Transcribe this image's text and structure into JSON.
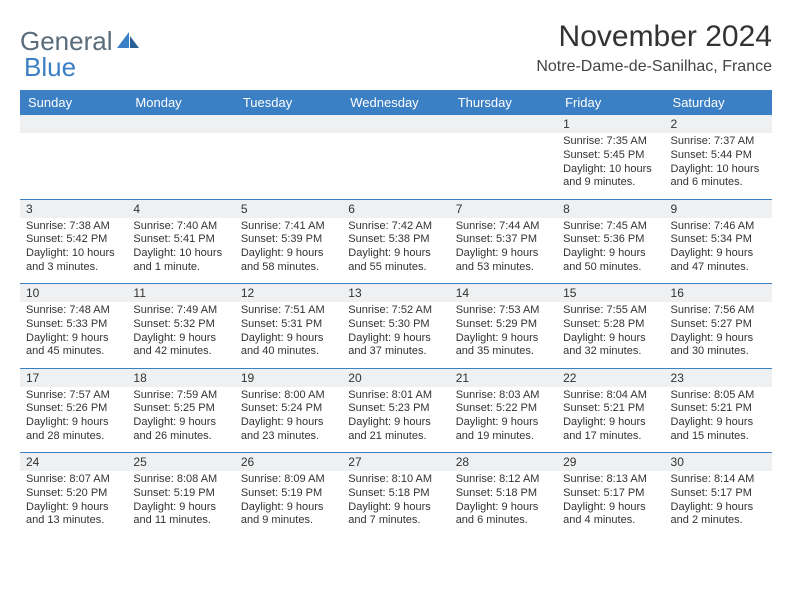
{
  "logo": {
    "text1": "General",
    "text2": "Blue"
  },
  "title": "November 2024",
  "location": "Notre-Dame-de-Sanilhac, France",
  "colors": {
    "header_bg": "#3b7fc4",
    "spacer_bg": "#eef0f2",
    "text": "#333333"
  },
  "weekdays": [
    "Sunday",
    "Monday",
    "Tuesday",
    "Wednesday",
    "Thursday",
    "Friday",
    "Saturday"
  ],
  "weeks": [
    [
      null,
      null,
      null,
      null,
      null,
      {
        "n": "1",
        "sr": "Sunrise: 7:35 AM",
        "ss": "Sunset: 5:45 PM",
        "dl": "Daylight: 10 hours and 9 minutes."
      },
      {
        "n": "2",
        "sr": "Sunrise: 7:37 AM",
        "ss": "Sunset: 5:44 PM",
        "dl": "Daylight: 10 hours and 6 minutes."
      }
    ],
    [
      {
        "n": "3",
        "sr": "Sunrise: 7:38 AM",
        "ss": "Sunset: 5:42 PM",
        "dl": "Daylight: 10 hours and 3 minutes."
      },
      {
        "n": "4",
        "sr": "Sunrise: 7:40 AM",
        "ss": "Sunset: 5:41 PM",
        "dl": "Daylight: 10 hours and 1 minute."
      },
      {
        "n": "5",
        "sr": "Sunrise: 7:41 AM",
        "ss": "Sunset: 5:39 PM",
        "dl": "Daylight: 9 hours and 58 minutes."
      },
      {
        "n": "6",
        "sr": "Sunrise: 7:42 AM",
        "ss": "Sunset: 5:38 PM",
        "dl": "Daylight: 9 hours and 55 minutes."
      },
      {
        "n": "7",
        "sr": "Sunrise: 7:44 AM",
        "ss": "Sunset: 5:37 PM",
        "dl": "Daylight: 9 hours and 53 minutes."
      },
      {
        "n": "8",
        "sr": "Sunrise: 7:45 AM",
        "ss": "Sunset: 5:36 PM",
        "dl": "Daylight: 9 hours and 50 minutes."
      },
      {
        "n": "9",
        "sr": "Sunrise: 7:46 AM",
        "ss": "Sunset: 5:34 PM",
        "dl": "Daylight: 9 hours and 47 minutes."
      }
    ],
    [
      {
        "n": "10",
        "sr": "Sunrise: 7:48 AM",
        "ss": "Sunset: 5:33 PM",
        "dl": "Daylight: 9 hours and 45 minutes."
      },
      {
        "n": "11",
        "sr": "Sunrise: 7:49 AM",
        "ss": "Sunset: 5:32 PM",
        "dl": "Daylight: 9 hours and 42 minutes."
      },
      {
        "n": "12",
        "sr": "Sunrise: 7:51 AM",
        "ss": "Sunset: 5:31 PM",
        "dl": "Daylight: 9 hours and 40 minutes."
      },
      {
        "n": "13",
        "sr": "Sunrise: 7:52 AM",
        "ss": "Sunset: 5:30 PM",
        "dl": "Daylight: 9 hours and 37 minutes."
      },
      {
        "n": "14",
        "sr": "Sunrise: 7:53 AM",
        "ss": "Sunset: 5:29 PM",
        "dl": "Daylight: 9 hours and 35 minutes."
      },
      {
        "n": "15",
        "sr": "Sunrise: 7:55 AM",
        "ss": "Sunset: 5:28 PM",
        "dl": "Daylight: 9 hours and 32 minutes."
      },
      {
        "n": "16",
        "sr": "Sunrise: 7:56 AM",
        "ss": "Sunset: 5:27 PM",
        "dl": "Daylight: 9 hours and 30 minutes."
      }
    ],
    [
      {
        "n": "17",
        "sr": "Sunrise: 7:57 AM",
        "ss": "Sunset: 5:26 PM",
        "dl": "Daylight: 9 hours and 28 minutes."
      },
      {
        "n": "18",
        "sr": "Sunrise: 7:59 AM",
        "ss": "Sunset: 5:25 PM",
        "dl": "Daylight: 9 hours and 26 minutes."
      },
      {
        "n": "19",
        "sr": "Sunrise: 8:00 AM",
        "ss": "Sunset: 5:24 PM",
        "dl": "Daylight: 9 hours and 23 minutes."
      },
      {
        "n": "20",
        "sr": "Sunrise: 8:01 AM",
        "ss": "Sunset: 5:23 PM",
        "dl": "Daylight: 9 hours and 21 minutes."
      },
      {
        "n": "21",
        "sr": "Sunrise: 8:03 AM",
        "ss": "Sunset: 5:22 PM",
        "dl": "Daylight: 9 hours and 19 minutes."
      },
      {
        "n": "22",
        "sr": "Sunrise: 8:04 AM",
        "ss": "Sunset: 5:21 PM",
        "dl": "Daylight: 9 hours and 17 minutes."
      },
      {
        "n": "23",
        "sr": "Sunrise: 8:05 AM",
        "ss": "Sunset: 5:21 PM",
        "dl": "Daylight: 9 hours and 15 minutes."
      }
    ],
    [
      {
        "n": "24",
        "sr": "Sunrise: 8:07 AM",
        "ss": "Sunset: 5:20 PM",
        "dl": "Daylight: 9 hours and 13 minutes."
      },
      {
        "n": "25",
        "sr": "Sunrise: 8:08 AM",
        "ss": "Sunset: 5:19 PM",
        "dl": "Daylight: 9 hours and 11 minutes."
      },
      {
        "n": "26",
        "sr": "Sunrise: 8:09 AM",
        "ss": "Sunset: 5:19 PM",
        "dl": "Daylight: 9 hours and 9 minutes."
      },
      {
        "n": "27",
        "sr": "Sunrise: 8:10 AM",
        "ss": "Sunset: 5:18 PM",
        "dl": "Daylight: 9 hours and 7 minutes."
      },
      {
        "n": "28",
        "sr": "Sunrise: 8:12 AM",
        "ss": "Sunset: 5:18 PM",
        "dl": "Daylight: 9 hours and 6 minutes."
      },
      {
        "n": "29",
        "sr": "Sunrise: 8:13 AM",
        "ss": "Sunset: 5:17 PM",
        "dl": "Daylight: 9 hours and 4 minutes."
      },
      {
        "n": "30",
        "sr": "Sunrise: 8:14 AM",
        "ss": "Sunset: 5:17 PM",
        "dl": "Daylight: 9 hours and 2 minutes."
      }
    ]
  ]
}
